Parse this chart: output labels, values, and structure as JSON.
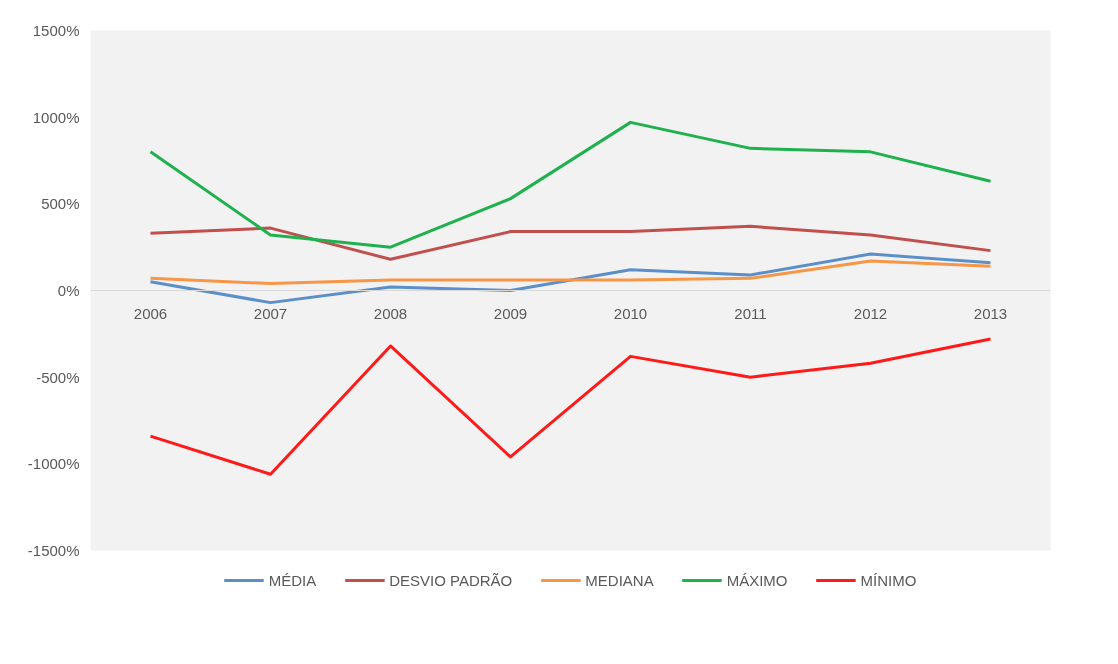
{
  "chart_data": {
    "type": "line",
    "categories": [
      "2006",
      "2007",
      "2008",
      "2009",
      "2010",
      "2011",
      "2012",
      "2013"
    ],
    "series": [
      {
        "name": "MÉDIA",
        "color": "#5b8fc9",
        "values": [
          50,
          -70,
          20,
          0,
          120,
          90,
          210,
          160
        ]
      },
      {
        "name": "DESVIO PADRÃO",
        "color": "#c0504d",
        "values": [
          330,
          360,
          180,
          340,
          340,
          370,
          320,
          230
        ]
      },
      {
        "name": "MEDIANA",
        "color": "#f79646",
        "values": [
          70,
          40,
          60,
          60,
          60,
          70,
          170,
          140
        ]
      },
      {
        "name": "MÁXIMO",
        "color": "#1fb14e",
        "values": [
          800,
          320,
          250,
          530,
          970,
          820,
          800,
          630
        ]
      },
      {
        "name": "MÍNIMO",
        "color": "#ff1a1a",
        "values": [
          -840,
          -1060,
          -320,
          -960,
          -380,
          -500,
          -420,
          -280
        ]
      }
    ],
    "ylim": [
      -1500,
      1500
    ],
    "yticks": [
      {
        "value": -1500,
        "label": "-1500%"
      },
      {
        "value": -1000,
        "label": "-1000%"
      },
      {
        "value": -500,
        "label": "-500%"
      },
      {
        "value": 0,
        "label": "0%"
      },
      {
        "value": 500,
        "label": "500%"
      },
      {
        "value": 1000,
        "label": "1000%"
      },
      {
        "value": 1500,
        "label": "1500%"
      }
    ],
    "grid": false,
    "legend": "bottom",
    "marker": "none",
    "line_style": "solid"
  }
}
